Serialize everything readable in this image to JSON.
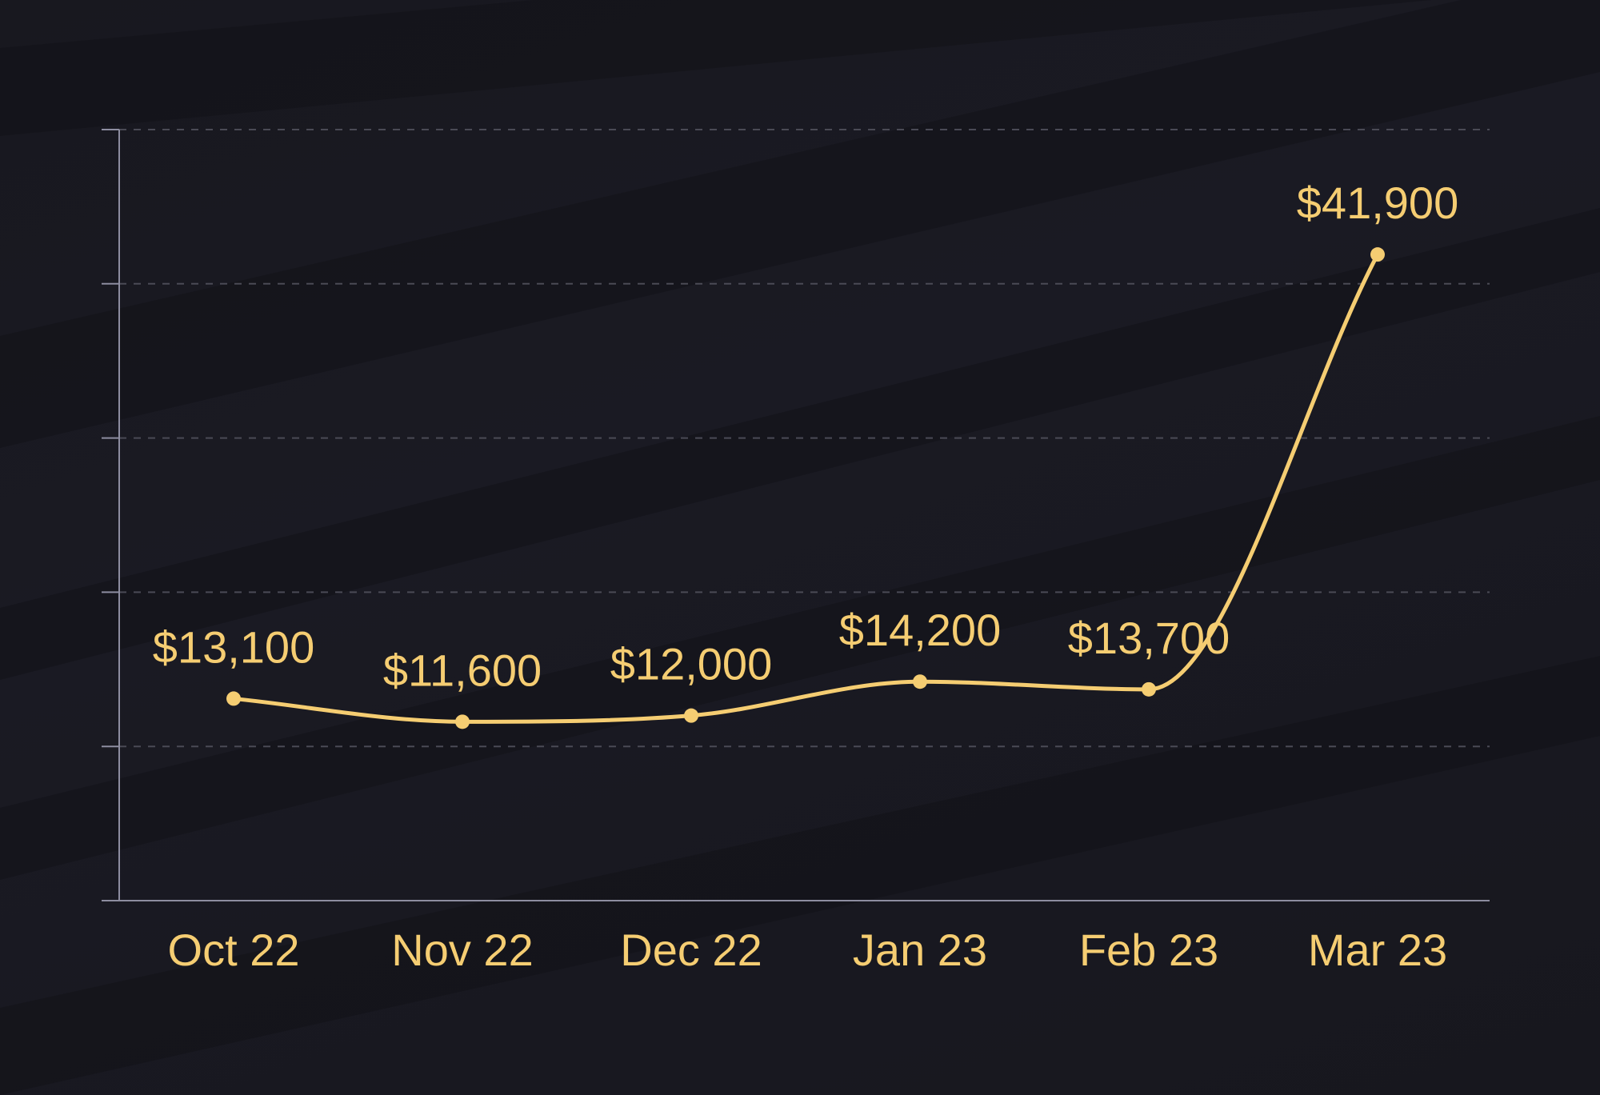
{
  "colors": {
    "background": "#16161d",
    "accent": "#f5cd72",
    "axis": "#8d8da0",
    "grid": "#4a4a55"
  },
  "chart_data": {
    "type": "line",
    "title": "",
    "xlabel": "",
    "ylabel": "",
    "categories": [
      "Oct 22",
      "Nov 22",
      "Dec 22",
      "Jan 23",
      "Feb 23",
      "Mar 23"
    ],
    "series": [
      {
        "values": [
          13100,
          11600,
          12000,
          14200,
          13700,
          41900
        ],
        "labels": [
          "$13,100",
          "$11,600",
          "$12,000",
          "$14,200",
          "$13,700",
          "$41,900"
        ]
      }
    ],
    "ylim": [
      0,
      50000
    ],
    "y_gridlines": [
      10000,
      20000,
      30000,
      40000,
      50000
    ],
    "y_tick_labels_shown": false,
    "grid": true,
    "legend": "none",
    "smooth": true
  }
}
